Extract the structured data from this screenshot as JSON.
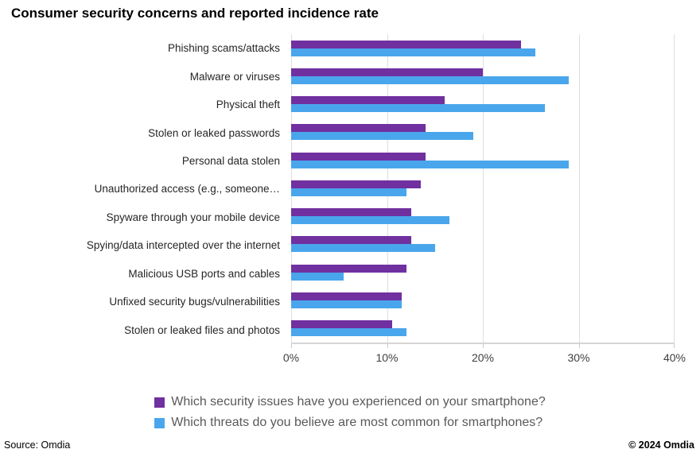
{
  "title": "Consumer security concerns and reported incidence rate",
  "footer": {
    "source": "Source: Omdia",
    "copyright": "© 2024 Omdia"
  },
  "chart_data": {
    "type": "bar",
    "orientation": "horizontal",
    "title": "Consumer security concerns and reported incidence rate",
    "categories": [
      "Phishing scams/attacks",
      "Malware or viruses",
      "Physical theft",
      "Stolen or leaked passwords",
      "Personal data stolen",
      "Unauthorized access (e.g., someone…",
      "Spyware through your mobile device",
      "Spying/data intercepted over the internet",
      "Malicious USB ports and cables",
      "Unfixed security bugs/vulnerabilities",
      "Stolen or leaked files and photos"
    ],
    "series": [
      {
        "name": "Which security issues have you experienced on your smartphone?",
        "color": "#7030A0",
        "values": [
          24,
          20,
          16,
          14,
          14,
          13.5,
          12.5,
          12.5,
          12,
          11.5,
          10.5
        ]
      },
      {
        "name": "Which threats do you believe are most common for smartphones?",
        "color": "#4AA6EC",
        "values": [
          25.5,
          29,
          26.5,
          19,
          29,
          12,
          16.5,
          15,
          5.5,
          11.5,
          12
        ]
      }
    ],
    "xlabel": "",
    "ylabel": "",
    "xlim": [
      0,
      40
    ],
    "x_ticks": [
      "0%",
      "10%",
      "20%",
      "30%",
      "40%"
    ],
    "grid": "vertical",
    "legend_position": "bottom"
  }
}
